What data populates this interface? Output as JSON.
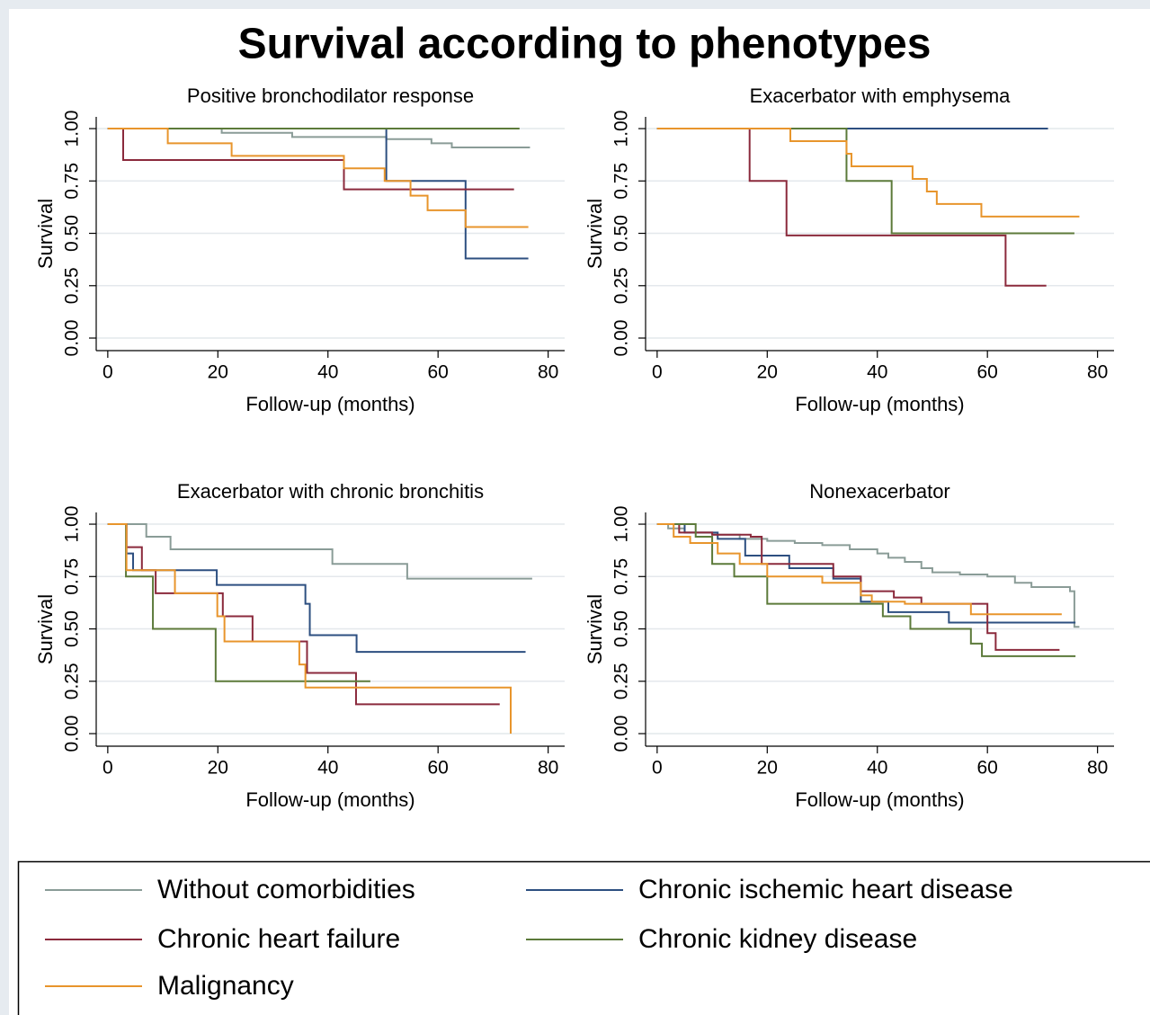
{
  "title": "Survival according to phenotypes",
  "legend": {
    "series": [
      {
        "name": "Without comorbidities",
        "color": "#8a9c97"
      },
      {
        "name": "Chronic ischemic heart disease",
        "color": "#2d4f80"
      },
      {
        "name": "Chronic heart failure",
        "color": "#8b2a3c"
      },
      {
        "name": "Chronic kidney disease",
        "color": "#5c7a3a"
      },
      {
        "name": "Malignancy",
        "color": "#e8952c"
      }
    ]
  },
  "chart_data": [
    {
      "type": "step",
      "title": "Positive bronchodilator response",
      "xlabel": "Follow-up (months)",
      "ylabel": "Survival",
      "xlim": [
        -2.1,
        83
      ],
      "ylim": [
        -0.06,
        1.056
      ],
      "xticks": [
        0,
        20,
        40,
        60,
        80
      ],
      "yticks": [
        {
          "value": 0,
          "label": "0.00"
        },
        {
          "value": 0.25,
          "label": "0.25"
        },
        {
          "value": 0.5,
          "label": "0.50"
        },
        {
          "value": 0.75,
          "label": "0.75"
        },
        {
          "value": 1,
          "label": "1.00"
        }
      ],
      "grid": true,
      "series": [
        {
          "x": [
            0,
            20.7,
            33.5,
            50.6,
            58.8,
            62.5,
            76.7
          ],
          "values": [
            1,
            0.98,
            0.96,
            0.95,
            0.93,
            0.91,
            0.91
          ]
        },
        {
          "x": [
            0,
            50.6,
            65,
            76.4
          ],
          "values": [
            1,
            0.75,
            0.38,
            0.38
          ]
        },
        {
          "x": [
            0,
            2.8,
            42.9,
            73.8
          ],
          "values": [
            1,
            0.85,
            0.71,
            0.71
          ]
        },
        {
          "x": [
            0,
            74.8
          ],
          "values": [
            1,
            1
          ]
        },
        {
          "x": [
            0,
            10.9,
            22.5,
            42.9,
            50.3,
            55,
            58.1,
            65,
            76.4
          ],
          "values": [
            1,
            0.93,
            0.87,
            0.81,
            0.75,
            0.68,
            0.61,
            0.53,
            0.53
          ]
        }
      ]
    },
    {
      "type": "step",
      "title": "Exacerbator with emphysema",
      "xlabel": "Follow-up (months)",
      "ylabel": "Survival",
      "xlim": [
        -2.1,
        83
      ],
      "ylim": [
        -0.06,
        1.056
      ],
      "xticks": [
        0,
        20,
        40,
        60,
        80
      ],
      "yticks": [
        {
          "value": 0,
          "label": "0.00"
        },
        {
          "value": 0.25,
          "label": "0.25"
        },
        {
          "value": 0.5,
          "label": "0.50"
        },
        {
          "value": 0.75,
          "label": "0.75"
        },
        {
          "value": 1,
          "label": "1.00"
        }
      ],
      "grid": true,
      "series": [
        {
          "x": [
            0,
            60
          ],
          "values": [
            1,
            1
          ]
        },
        {
          "x": [
            0,
            71
          ],
          "values": [
            1,
            1
          ]
        },
        {
          "x": [
            0,
            16.8,
            23.5,
            63.3,
            70.7
          ],
          "values": [
            1,
            0.75,
            0.49,
            0.25,
            0.25
          ]
        },
        {
          "x": [
            0,
            34.4,
            42.6,
            75.8
          ],
          "values": [
            1,
            0.75,
            0.5,
            0.5
          ]
        },
        {
          "x": [
            0,
            24.2,
            34.4,
            35.3,
            46.4,
            49,
            50.8,
            58.9,
            76.7
          ],
          "values": [
            1,
            0.94,
            0.88,
            0.82,
            0.76,
            0.7,
            0.64,
            0.58,
            0.58
          ]
        }
      ]
    },
    {
      "type": "step",
      "title": "Exacerbator with chronic bronchitis",
      "xlabel": "Follow-up (months)",
      "ylabel": "Survival",
      "xlim": [
        -2.1,
        83
      ],
      "ylim": [
        -0.06,
        1.056
      ],
      "xticks": [
        0,
        20,
        40,
        60,
        80
      ],
      "yticks": [
        {
          "value": 0,
          "label": "0.00"
        },
        {
          "value": 0.25,
          "label": "0.25"
        },
        {
          "value": 0.5,
          "label": "0.50"
        },
        {
          "value": 0.75,
          "label": "0.75"
        },
        {
          "value": 1,
          "label": "1.00"
        }
      ],
      "grid": true,
      "series": [
        {
          "x": [
            0,
            7,
            11.4,
            40.8,
            54.4,
            77.1
          ],
          "values": [
            1,
            0.94,
            0.88,
            0.81,
            0.74,
            0.74
          ]
        },
        {
          "x": [
            0,
            3.4,
            4.6,
            19.8,
            35.9,
            36.7,
            45.2,
            75.9
          ],
          "values": [
            1,
            0.86,
            0.78,
            0.71,
            0.62,
            0.47,
            0.39,
            0.39
          ]
        },
        {
          "x": [
            0,
            3.4,
            6.2,
            8.7,
            20.9,
            26.3,
            36.2,
            45.1,
            71.2
          ],
          "values": [
            1,
            0.89,
            0.78,
            0.67,
            0.56,
            0.44,
            0.29,
            0.14,
            0.14
          ]
        },
        {
          "x": [
            0,
            3.3,
            8.2,
            19.6,
            47.7
          ],
          "values": [
            1,
            0.75,
            0.5,
            0.25,
            0.25
          ]
        },
        {
          "x": [
            0,
            3.4,
            12.2,
            19.9,
            21.2,
            34.8,
            35.9,
            73.2
          ],
          "values": [
            1,
            0.78,
            0.67,
            0.56,
            0.44,
            0.33,
            0.22,
            0
          ]
        }
      ]
    },
    {
      "type": "step",
      "title": "Nonexacerbator",
      "xlabel": "Follow-up (months)",
      "ylabel": "Survival",
      "xlim": [
        -2.1,
        83
      ],
      "ylim": [
        -0.06,
        1.056
      ],
      "xticks": [
        0,
        20,
        40,
        60,
        80
      ],
      "yticks": [
        {
          "value": 0,
          "label": "0.00"
        },
        {
          "value": 0.25,
          "label": "0.25"
        },
        {
          "value": 0.5,
          "label": "0.50"
        },
        {
          "value": 0.75,
          "label": "0.75"
        },
        {
          "value": 1,
          "label": "1.00"
        }
      ],
      "grid": true,
      "series": [
        {
          "x": [
            0,
            2,
            5,
            10,
            15,
            20,
            25,
            30,
            35,
            40,
            42,
            45,
            48,
            50,
            55,
            60,
            65,
            68,
            75,
            75.8,
            76.7
          ],
          "values": [
            1,
            0.98,
            0.96,
            0.95,
            0.93,
            0.92,
            0.91,
            0.9,
            0.88,
            0.86,
            0.84,
            0.82,
            0.79,
            0.77,
            0.76,
            0.75,
            0.72,
            0.7,
            0.68,
            0.51,
            0.51
          ]
        },
        {
          "x": [
            0,
            5,
            11,
            16,
            24,
            32,
            37,
            42,
            53,
            76
          ],
          "values": [
            1,
            0.96,
            0.93,
            0.85,
            0.79,
            0.74,
            0.63,
            0.58,
            0.53,
            0.53
          ]
        },
        {
          "x": [
            0,
            4,
            10,
            17,
            19,
            32,
            37,
            43,
            48,
            60,
            61.5,
            73.1
          ],
          "values": [
            1,
            0.96,
            0.95,
            0.94,
            0.81,
            0.75,
            0.68,
            0.65,
            0.62,
            0.48,
            0.4,
            0.4
          ]
        },
        {
          "x": [
            0,
            7,
            10,
            14,
            20,
            41,
            46,
            57,
            59,
            76
          ],
          "values": [
            1,
            0.94,
            0.81,
            0.75,
            0.62,
            0.56,
            0.5,
            0.43,
            0.37,
            0.37
          ]
        },
        {
          "x": [
            0,
            3,
            6,
            11,
            15,
            20,
            30,
            37,
            39,
            45,
            57,
            73.5
          ],
          "values": [
            1,
            0.94,
            0.91,
            0.86,
            0.81,
            0.75,
            0.72,
            0.66,
            0.63,
            0.62,
            0.57,
            0.57
          ]
        }
      ]
    }
  ]
}
